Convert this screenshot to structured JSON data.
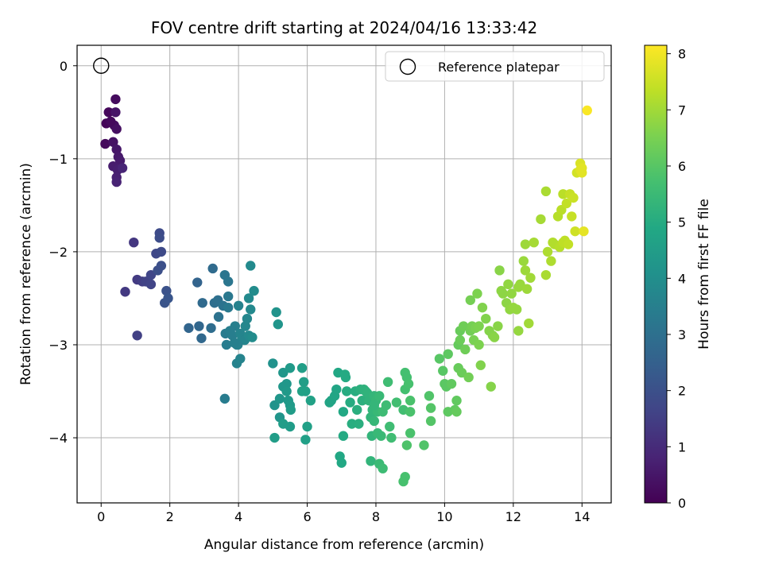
{
  "chart_data": {
    "type": "scatter",
    "title": "FOV centre drift starting at 2024/04/16 13:33:42",
    "xlabel": "Angular distance from reference (arcmin)",
    "ylabel": "Rotation from reference (arcmin)",
    "xlim": [
      -0.7,
      14.85
    ],
    "ylim": [
      -4.7,
      0.22
    ],
    "xticks": [
      0,
      2,
      4,
      6,
      8,
      10,
      12,
      14
    ],
    "yticks": [
      0,
      -1,
      -2,
      -3,
      -4
    ],
    "grid": true,
    "legend": {
      "placement": "top-right",
      "entries": [
        "Reference platepar"
      ]
    },
    "reference": {
      "x": 0,
      "y": 0
    },
    "colorbar": {
      "label": "Hours from first FF file",
      "range": [
        0,
        8.15
      ],
      "ticks": [
        0,
        1,
        2,
        3,
        4,
        5,
        6,
        7,
        8
      ],
      "colormap": "viridis"
    },
    "points": [
      [
        0.15,
        -0.62,
        0.1
      ],
      [
        0.22,
        -0.5,
        0.15
      ],
      [
        0.12,
        -0.84,
        0.2
      ],
      [
        0.42,
        -0.36,
        0.25
      ],
      [
        0.38,
        -0.64,
        0.3
      ],
      [
        0.45,
        -0.68,
        0.35
      ],
      [
        0.35,
        -0.82,
        0.4
      ],
      [
        0.42,
        -0.5,
        0.45
      ],
      [
        0.45,
        -0.9,
        0.5
      ],
      [
        0.5,
        -0.98,
        0.55
      ],
      [
        0.55,
        -1.02,
        0.6
      ],
      [
        0.35,
        -1.08,
        0.65
      ],
      [
        0.48,
        -1.12,
        0.7
      ],
      [
        0.45,
        -1.2,
        0.75
      ],
      [
        0.45,
        -1.25,
        0.8
      ],
      [
        0.62,
        -1.1,
        0.85
      ],
      [
        0.28,
        -0.6,
        0.2
      ],
      [
        0.95,
        -1.9,
        1.3
      ],
      [
        0.7,
        -2.43,
        1.35
      ],
      [
        1.05,
        -2.3,
        1.4
      ],
      [
        1.2,
        -2.32,
        1.5
      ],
      [
        1.05,
        -2.9,
        1.55
      ],
      [
        1.3,
        -2.32,
        1.6
      ],
      [
        1.45,
        -2.35,
        1.65
      ],
      [
        1.45,
        -2.25,
        1.7
      ],
      [
        1.6,
        -2.02,
        1.75
      ],
      [
        1.75,
        -2.0,
        1.8
      ],
      [
        1.7,
        -1.8,
        1.85
      ],
      [
        1.7,
        -1.85,
        1.9
      ],
      [
        1.65,
        -2.2,
        1.95
      ],
      [
        1.75,
        -2.15,
        2.0
      ],
      [
        1.9,
        -2.42,
        2.05
      ],
      [
        1.85,
        -2.55,
        2.1
      ],
      [
        1.95,
        -2.5,
        2.15
      ],
      [
        2.8,
        -2.33,
        2.6
      ],
      [
        2.55,
        -2.82,
        2.65
      ],
      [
        2.85,
        -2.8,
        2.7
      ],
      [
        2.92,
        -2.93,
        2.75
      ],
      [
        2.95,
        -2.55,
        2.8
      ],
      [
        3.25,
        -2.18,
        2.85
      ],
      [
        3.2,
        -2.82,
        2.9
      ],
      [
        3.3,
        -2.55,
        2.95
      ],
      [
        3.4,
        -2.52,
        3.0
      ],
      [
        3.42,
        -2.7,
        3.05
      ],
      [
        3.55,
        -2.58,
        3.1
      ],
      [
        3.6,
        -2.25,
        3.15
      ],
      [
        3.7,
        -2.32,
        3.2
      ],
      [
        3.7,
        -2.48,
        3.25
      ],
      [
        3.7,
        -2.6,
        3.3
      ],
      [
        3.62,
        -2.88,
        3.35
      ],
      [
        3.65,
        -3.0,
        3.4
      ],
      [
        3.82,
        -2.9,
        3.45
      ],
      [
        3.9,
        -2.8,
        3.5
      ],
      [
        3.95,
        -3.0,
        3.55
      ],
      [
        3.95,
        -3.2,
        3.6
      ],
      [
        4.0,
        -2.58,
        3.6
      ],
      [
        4.05,
        -2.88,
        3.65
      ],
      [
        4.05,
        -3.15,
        3.65
      ],
      [
        4.1,
        -2.93,
        3.7
      ],
      [
        4.18,
        -2.95,
        3.7
      ],
      [
        4.2,
        -2.8,
        3.75
      ],
      [
        4.25,
        -2.72,
        3.75
      ],
      [
        4.3,
        -2.9,
        3.8
      ],
      [
        4.35,
        -2.62,
        3.8
      ],
      [
        4.3,
        -2.5,
        3.85
      ],
      [
        4.35,
        -2.15,
        3.85
      ],
      [
        4.45,
        -2.42,
        3.9
      ],
      [
        3.75,
        -2.85,
        3.45
      ],
      [
        3.6,
        -3.58,
        3.4
      ],
      [
        4.4,
        -2.92,
        3.9
      ],
      [
        3.98,
        -3.0,
        3.55
      ],
      [
        3.88,
        -2.98,
        3.5
      ],
      [
        5.0,
        -3.2,
        4.1
      ],
      [
        5.05,
        -3.65,
        4.15
      ],
      [
        5.1,
        -2.65,
        4.15
      ],
      [
        5.15,
        -2.78,
        4.2
      ],
      [
        5.2,
        -3.78,
        4.2
      ],
      [
        5.2,
        -3.58,
        4.25
      ],
      [
        5.3,
        -3.3,
        4.25
      ],
      [
        5.3,
        -3.45,
        4.3
      ],
      [
        5.4,
        -3.42,
        4.3
      ],
      [
        5.4,
        -3.5,
        4.35
      ],
      [
        5.45,
        -3.6,
        4.35
      ],
      [
        5.5,
        -3.25,
        4.4
      ],
      [
        5.5,
        -3.65,
        4.4
      ],
      [
        5.5,
        -3.88,
        4.45
      ],
      [
        5.52,
        -3.7,
        4.45
      ],
      [
        5.3,
        -3.85,
        4.5
      ],
      [
        5.05,
        -4.0,
        4.5
      ],
      [
        5.85,
        -3.25,
        4.55
      ],
      [
        5.9,
        -3.4,
        4.55
      ],
      [
        5.95,
        -3.5,
        4.6
      ],
      [
        6.0,
        -3.88,
        4.6
      ],
      [
        5.95,
        -4.02,
        4.6
      ],
      [
        6.1,
        -3.6,
        4.65
      ],
      [
        5.85,
        -3.5,
        4.65
      ],
      [
        6.7,
        -3.6,
        4.75
      ],
      [
        6.8,
        -3.55,
        4.8
      ],
      [
        6.85,
        -3.48,
        4.8
      ],
      [
        6.9,
        -3.3,
        4.85
      ],
      [
        6.95,
        -4.2,
        4.85
      ],
      [
        7.0,
        -4.27,
        4.9
      ],
      [
        7.05,
        -3.72,
        4.9
      ],
      [
        7.05,
        -3.98,
        4.95
      ],
      [
        7.1,
        -3.32,
        4.95
      ],
      [
        7.15,
        -3.5,
        5.0
      ],
      [
        7.25,
        -3.62,
        5.0
      ],
      [
        7.3,
        -3.85,
        5.05
      ],
      [
        7.4,
        -3.5,
        5.05
      ],
      [
        7.45,
        -3.7,
        5.1
      ],
      [
        7.5,
        -3.85,
        5.1
      ],
      [
        7.55,
        -3.48,
        5.15
      ],
      [
        7.6,
        -3.6,
        5.15
      ],
      [
        7.65,
        -3.48,
        5.2
      ],
      [
        7.7,
        -3.5,
        5.2
      ],
      [
        7.75,
        -3.52,
        5.25
      ],
      [
        7.8,
        -3.6,
        5.25
      ],
      [
        7.85,
        -3.78,
        5.3
      ],
      [
        7.85,
        -4.25,
        5.3
      ],
      [
        7.9,
        -3.7,
        5.35
      ],
      [
        7.95,
        -3.55,
        5.35
      ],
      [
        7.95,
        -3.82,
        5.4
      ],
      [
        8.0,
        -3.6,
        5.4
      ],
      [
        8.05,
        -3.72,
        5.45
      ],
      [
        8.1,
        -3.55,
        5.45
      ],
      [
        8.1,
        -4.28,
        5.5
      ],
      [
        8.15,
        -3.98,
        5.5
      ],
      [
        8.2,
        -3.72,
        5.55
      ],
      [
        8.2,
        -4.33,
        5.55
      ],
      [
        8.3,
        -3.65,
        5.55
      ],
      [
        8.35,
        -3.4,
        5.6
      ],
      [
        8.4,
        -3.88,
        5.6
      ],
      [
        8.45,
        -4.0,
        5.6
      ],
      [
        8.6,
        -3.62,
        5.65
      ],
      [
        8.8,
        -3.7,
        5.65
      ],
      [
        8.85,
        -3.3,
        5.7
      ],
      [
        8.85,
        -3.48,
        5.7
      ],
      [
        8.9,
        -3.35,
        5.7
      ],
      [
        8.95,
        -3.42,
        5.75
      ],
      [
        8.85,
        -4.42,
        5.75
      ],
      [
        8.8,
        -4.47,
        5.75
      ],
      [
        9.0,
        -3.6,
        5.8
      ],
      [
        9.0,
        -3.72,
        5.8
      ],
      [
        9.0,
        -3.95,
        5.8
      ],
      [
        8.9,
        -4.08,
        5.85
      ],
      [
        6.65,
        -3.62,
        4.75
      ],
      [
        7.12,
        -3.35,
        4.95
      ],
      [
        7.95,
        -3.65,
        5.35
      ],
      [
        7.88,
        -3.98,
        5.3
      ],
      [
        8.05,
        -3.95,
        5.45
      ],
      [
        9.4,
        -4.08,
        5.9
      ],
      [
        9.55,
        -3.55,
        5.9
      ],
      [
        9.6,
        -3.68,
        5.95
      ],
      [
        9.6,
        -3.82,
        5.95
      ],
      [
        9.85,
        -3.15,
        6.0
      ],
      [
        9.95,
        -3.28,
        6.0
      ],
      [
        10.0,
        -3.42,
        6.05
      ],
      [
        10.05,
        -3.45,
        6.05
      ],
      [
        10.1,
        -3.72,
        6.1
      ],
      [
        10.1,
        -3.1,
        6.1
      ],
      [
        10.2,
        -3.42,
        6.15
      ],
      [
        10.3,
        -3.7,
        6.15
      ],
      [
        10.35,
        -3.6,
        6.15
      ],
      [
        10.35,
        -3.72,
        6.2
      ],
      [
        10.4,
        -3.0,
        6.2
      ],
      [
        10.4,
        -3.25,
        6.25
      ],
      [
        10.45,
        -2.85,
        6.25
      ],
      [
        10.45,
        -2.95,
        6.3
      ],
      [
        10.5,
        -3.3,
        6.3
      ],
      [
        10.55,
        -2.8,
        6.35
      ],
      [
        10.6,
        -3.05,
        6.35
      ],
      [
        10.7,
        -3.35,
        6.4
      ],
      [
        10.75,
        -2.85,
        6.4
      ],
      [
        10.75,
        -2.52,
        6.45
      ],
      [
        10.8,
        -2.8,
        6.45
      ],
      [
        10.85,
        -2.95,
        6.5
      ],
      [
        10.9,
        -2.82,
        6.5
      ],
      [
        10.95,
        -2.45,
        6.55
      ],
      [
        11.0,
        -2.8,
        6.55
      ],
      [
        11.0,
        -3.0,
        6.55
      ],
      [
        11.05,
        -3.22,
        6.6
      ],
      [
        11.1,
        -2.6,
        6.6
      ],
      [
        11.2,
        -2.72,
        6.6
      ],
      [
        11.3,
        -2.85,
        6.65
      ],
      [
        11.35,
        -3.45,
        6.65
      ],
      [
        11.4,
        -2.9,
        6.65
      ],
      [
        11.45,
        -2.92,
        6.7
      ],
      [
        11.55,
        -2.8,
        6.7
      ],
      [
        11.6,
        -2.2,
        6.7
      ],
      [
        11.65,
        -2.42,
        6.75
      ],
      [
        11.7,
        -2.45,
        6.75
      ],
      [
        11.8,
        -2.55,
        6.75
      ],
      [
        11.85,
        -2.35,
        6.8
      ],
      [
        11.9,
        -2.62,
        6.8
      ],
      [
        11.95,
        -2.45,
        6.8
      ],
      [
        12.0,
        -2.6,
        6.85
      ],
      [
        12.1,
        -2.62,
        6.85
      ],
      [
        12.15,
        -2.85,
        6.85
      ],
      [
        12.15,
        -2.38,
        6.9
      ],
      [
        12.2,
        -2.35,
        6.9
      ],
      [
        12.3,
        -2.1,
        6.9
      ],
      [
        12.35,
        -2.2,
        6.95
      ],
      [
        12.35,
        -1.92,
        6.95
      ],
      [
        12.4,
        -2.4,
        6.95
      ],
      [
        12.45,
        -2.77,
        7.0
      ],
      [
        12.5,
        -2.28,
        7.0
      ],
      [
        12.6,
        -1.9,
        7.05
      ],
      [
        12.8,
        -1.65,
        7.05
      ],
      [
        12.95,
        -2.25,
        7.1
      ],
      [
        12.95,
        -1.35,
        7.1
      ],
      [
        13.0,
        -2.0,
        7.15
      ],
      [
        13.1,
        -2.1,
        7.15
      ],
      [
        13.15,
        -1.9,
        7.2
      ],
      [
        13.2,
        -1.92,
        7.2
      ],
      [
        13.3,
        -1.62,
        7.25
      ],
      [
        13.35,
        -1.95,
        7.25
      ],
      [
        13.4,
        -1.55,
        7.3
      ],
      [
        13.45,
        -1.38,
        7.3
      ],
      [
        13.45,
        -1.9,
        7.35
      ],
      [
        13.5,
        -1.88,
        7.35
      ],
      [
        13.55,
        -1.48,
        7.4
      ],
      [
        13.6,
        -1.92,
        7.4
      ],
      [
        13.65,
        -1.38,
        7.45
      ],
      [
        13.7,
        -1.62,
        7.45
      ],
      [
        13.75,
        -1.42,
        7.5
      ],
      [
        13.8,
        -1.78,
        7.55
      ],
      [
        13.85,
        -1.15,
        7.6
      ],
      [
        13.95,
        -1.05,
        7.7
      ],
      [
        13.95,
        -1.12,
        7.75
      ],
      [
        14.0,
        -1.15,
        7.8
      ],
      [
        14.05,
        -1.78,
        7.85
      ],
      [
        14.15,
        -0.48,
        8.1
      ],
      [
        14.0,
        -1.1,
        7.8
      ]
    ]
  }
}
